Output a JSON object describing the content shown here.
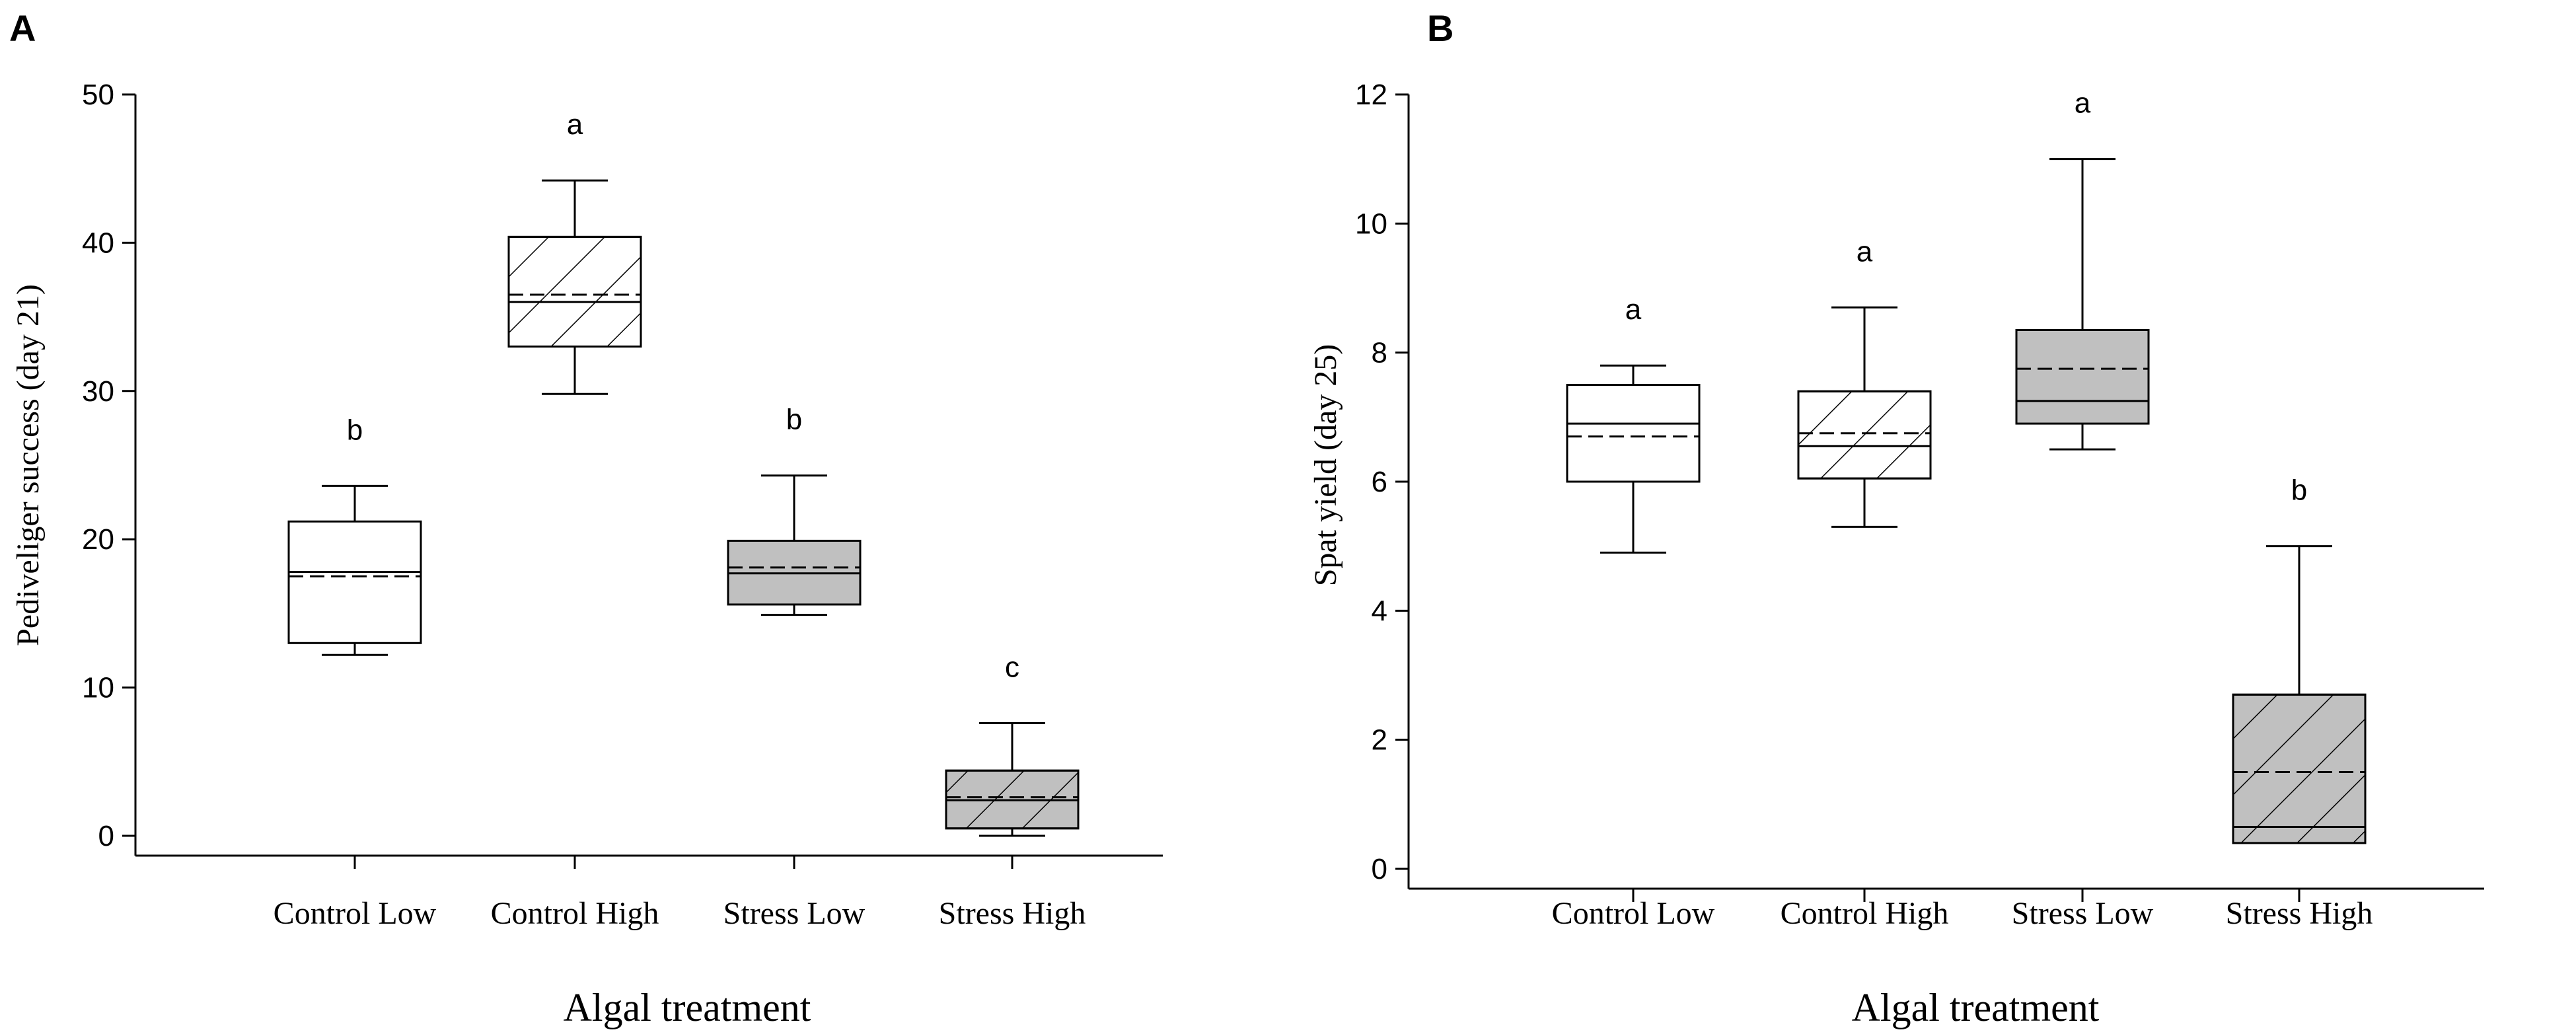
{
  "chart_data": [
    {
      "panel": "A",
      "type": "box",
      "ylabel": "Pediveliger success (day 21)",
      "xlabel": "Algal treatment",
      "ylim": [
        0,
        50
      ],
      "yticks": [
        0,
        10,
        20,
        30,
        40,
        50
      ],
      "categories": [
        "Control Low",
        "Control High",
        "Stress Low",
        "Stress High"
      ],
      "boxes": [
        {
          "category": "Control Low",
          "fill": "white",
          "hatch": false,
          "whisker_low": 12.2,
          "q1": 13.0,
          "median": 17.8,
          "mean": 17.5,
          "q3": 21.2,
          "whisker_high": 23.6,
          "letter": "b"
        },
        {
          "category": "Control High",
          "fill": "white",
          "hatch": true,
          "whisker_low": 29.8,
          "q1": 33.0,
          "median": 36.0,
          "mean": 36.5,
          "q3": 40.4,
          "whisker_high": 44.2,
          "letter": "a"
        },
        {
          "category": "Stress Low",
          "fill": "grey",
          "hatch": false,
          "whisker_low": 14.9,
          "q1": 15.6,
          "median": 17.7,
          "mean": 18.1,
          "q3": 19.9,
          "whisker_high": 24.3,
          "letter": "b"
        },
        {
          "category": "Stress High",
          "fill": "grey",
          "hatch": true,
          "whisker_low": 0.0,
          "q1": 0.5,
          "median": 2.4,
          "mean": 2.6,
          "q3": 4.4,
          "whisker_high": 7.6,
          "letter": "c"
        }
      ]
    },
    {
      "panel": "B",
      "type": "box",
      "ylabel": "Spat yield (day 25)",
      "xlabel": "Algal treatment",
      "ylim": [
        0,
        12
      ],
      "yticks": [
        0,
        2,
        4,
        6,
        8,
        10,
        12
      ],
      "categories": [
        "Control Low",
        "Control High",
        "Stress Low",
        "Stress High"
      ],
      "boxes": [
        {
          "category": "Control Low",
          "fill": "white",
          "hatch": false,
          "whisker_low": 4.9,
          "q1": 6.0,
          "median": 6.9,
          "mean": 6.7,
          "q3": 7.5,
          "whisker_high": 7.8,
          "letter": "a"
        },
        {
          "category": "Control High",
          "fill": "white",
          "hatch": true,
          "whisker_low": 5.3,
          "q1": 6.05,
          "median": 6.55,
          "mean": 6.75,
          "q3": 7.4,
          "whisker_high": 8.7,
          "letter": "a"
        },
        {
          "category": "Stress Low",
          "fill": "grey",
          "hatch": false,
          "whisker_low": 6.5,
          "q1": 6.9,
          "median": 7.25,
          "mean": 7.75,
          "q3": 8.35,
          "whisker_high": 11.0,
          "letter": "a"
        },
        {
          "category": "Stress High",
          "fill": "grey",
          "hatch": true,
          "whisker_low": 0.4,
          "q1": 0.4,
          "median": 0.65,
          "mean": 1.5,
          "q3": 2.7,
          "whisker_high": 5.0,
          "letter": "b"
        }
      ]
    }
  ],
  "colors": {
    "white_box": "#ffffff",
    "grey_box": "#c0c0c0",
    "ink": "#000000"
  }
}
